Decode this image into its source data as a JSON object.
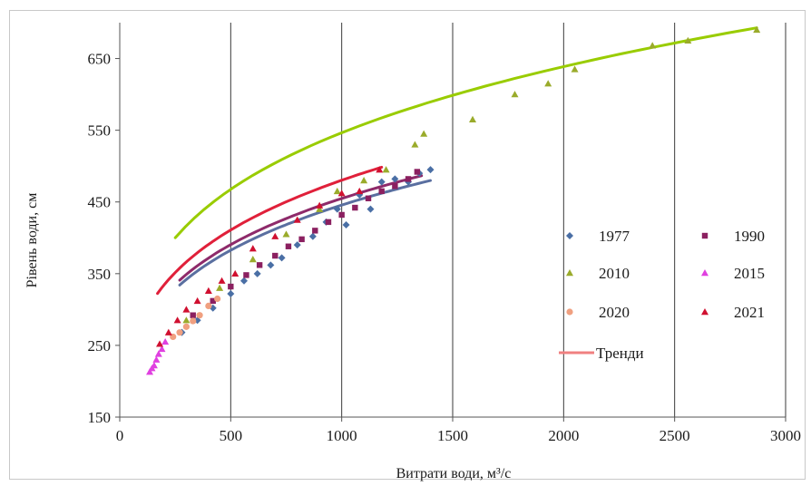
{
  "chart_data": {
    "type": "scatter",
    "title": "",
    "xlabel": "Витрати води, м³/с",
    "ylabel": "Рівень води, см",
    "xlim": [
      0,
      3000
    ],
    "ylim": [
      150,
      700
    ],
    "x_ticks": [
      "0",
      "500",
      "1000",
      "1500",
      "2000",
      "2500",
      "3000"
    ],
    "y_ticks": [
      "150",
      "250",
      "350",
      "450",
      "550",
      "650"
    ],
    "grid": "vertical",
    "legend_position": "center-right",
    "trend_label": "Тренди",
    "trend_color": "#f08080",
    "series": [
      {
        "name": "1977",
        "marker": "diamond",
        "color": "#4a6fa5",
        "x": [
          280,
          350,
          420,
          500,
          560,
          620,
          680,
          730,
          800,
          870,
          930,
          980,
          1020,
          1080,
          1130,
          1180,
          1240,
          1300,
          1350,
          1400
        ],
        "y": [
          268,
          285,
          302,
          322,
          340,
          350,
          362,
          372,
          390,
          402,
          422,
          440,
          418,
          460,
          440,
          478,
          482,
          478,
          490,
          495
        ]
      },
      {
        "name": "1990",
        "marker": "square",
        "color": "#8b2060",
        "x": [
          330,
          420,
          500,
          570,
          630,
          700,
          760,
          820,
          880,
          940,
          1000,
          1060,
          1120,
          1180,
          1240,
          1300,
          1340
        ],
        "y": [
          292,
          312,
          332,
          348,
          362,
          375,
          388,
          398,
          410,
          422,
          432,
          442,
          455,
          465,
          472,
          482,
          492
        ]
      },
      {
        "name": "2010",
        "marker": "triangle",
        "color": "#9aab2b",
        "x": [
          300,
          450,
          600,
          750,
          900,
          980,
          1100,
          1200,
          1330,
          1370,
          1590,
          1780,
          1930,
          2050,
          2400,
          2560,
          2870
        ],
        "y": [
          285,
          330,
          370,
          405,
          440,
          465,
          480,
          495,
          530,
          545,
          565,
          600,
          615,
          635,
          668,
          675,
          690
        ]
      },
      {
        "name": "2015",
        "marker": "triangle",
        "color": "#e040e0",
        "x": [
          135,
          145,
          155,
          165,
          175,
          190,
          205
        ],
        "y": [
          213,
          218,
          222,
          230,
          238,
          245,
          255
        ]
      },
      {
        "name": "2020",
        "marker": "circle",
        "color": "#f0a080",
        "x": [
          240,
          270,
          300,
          330,
          360,
          400,
          440
        ],
        "y": [
          262,
          268,
          276,
          284,
          292,
          305,
          315
        ]
      },
      {
        "name": "2021",
        "marker": "triangle",
        "color": "#d01030",
        "x": [
          180,
          220,
          260,
          300,
          350,
          400,
          460,
          520,
          600,
          700,
          800,
          900,
          1000,
          1080,
          1170
        ],
        "y": [
          252,
          268,
          285,
          300,
          312,
          326,
          340,
          350,
          385,
          402,
          425,
          445,
          462,
          465,
          495
        ]
      }
    ],
    "trends": [
      {
        "series": "2010",
        "color": "#99cc00",
        "x": [
          250,
          2870
        ],
        "a": 115.5,
        "b": 0.225
      },
      {
        "series": "1977",
        "color": "#5a6fa0",
        "x": [
          270,
          1400
        ],
        "a": 97.5,
        "b": 0.22
      },
      {
        "series": "1990",
        "color": "#8e2a6a",
        "x": [
          270,
          1360
        ],
        "a": 99.5,
        "b": 0.22
      },
      {
        "series": "2021",
        "color": "#e0203a",
        "x": [
          170,
          1180
        ],
        "a": 101.5,
        "b": 0.225
      }
    ]
  }
}
